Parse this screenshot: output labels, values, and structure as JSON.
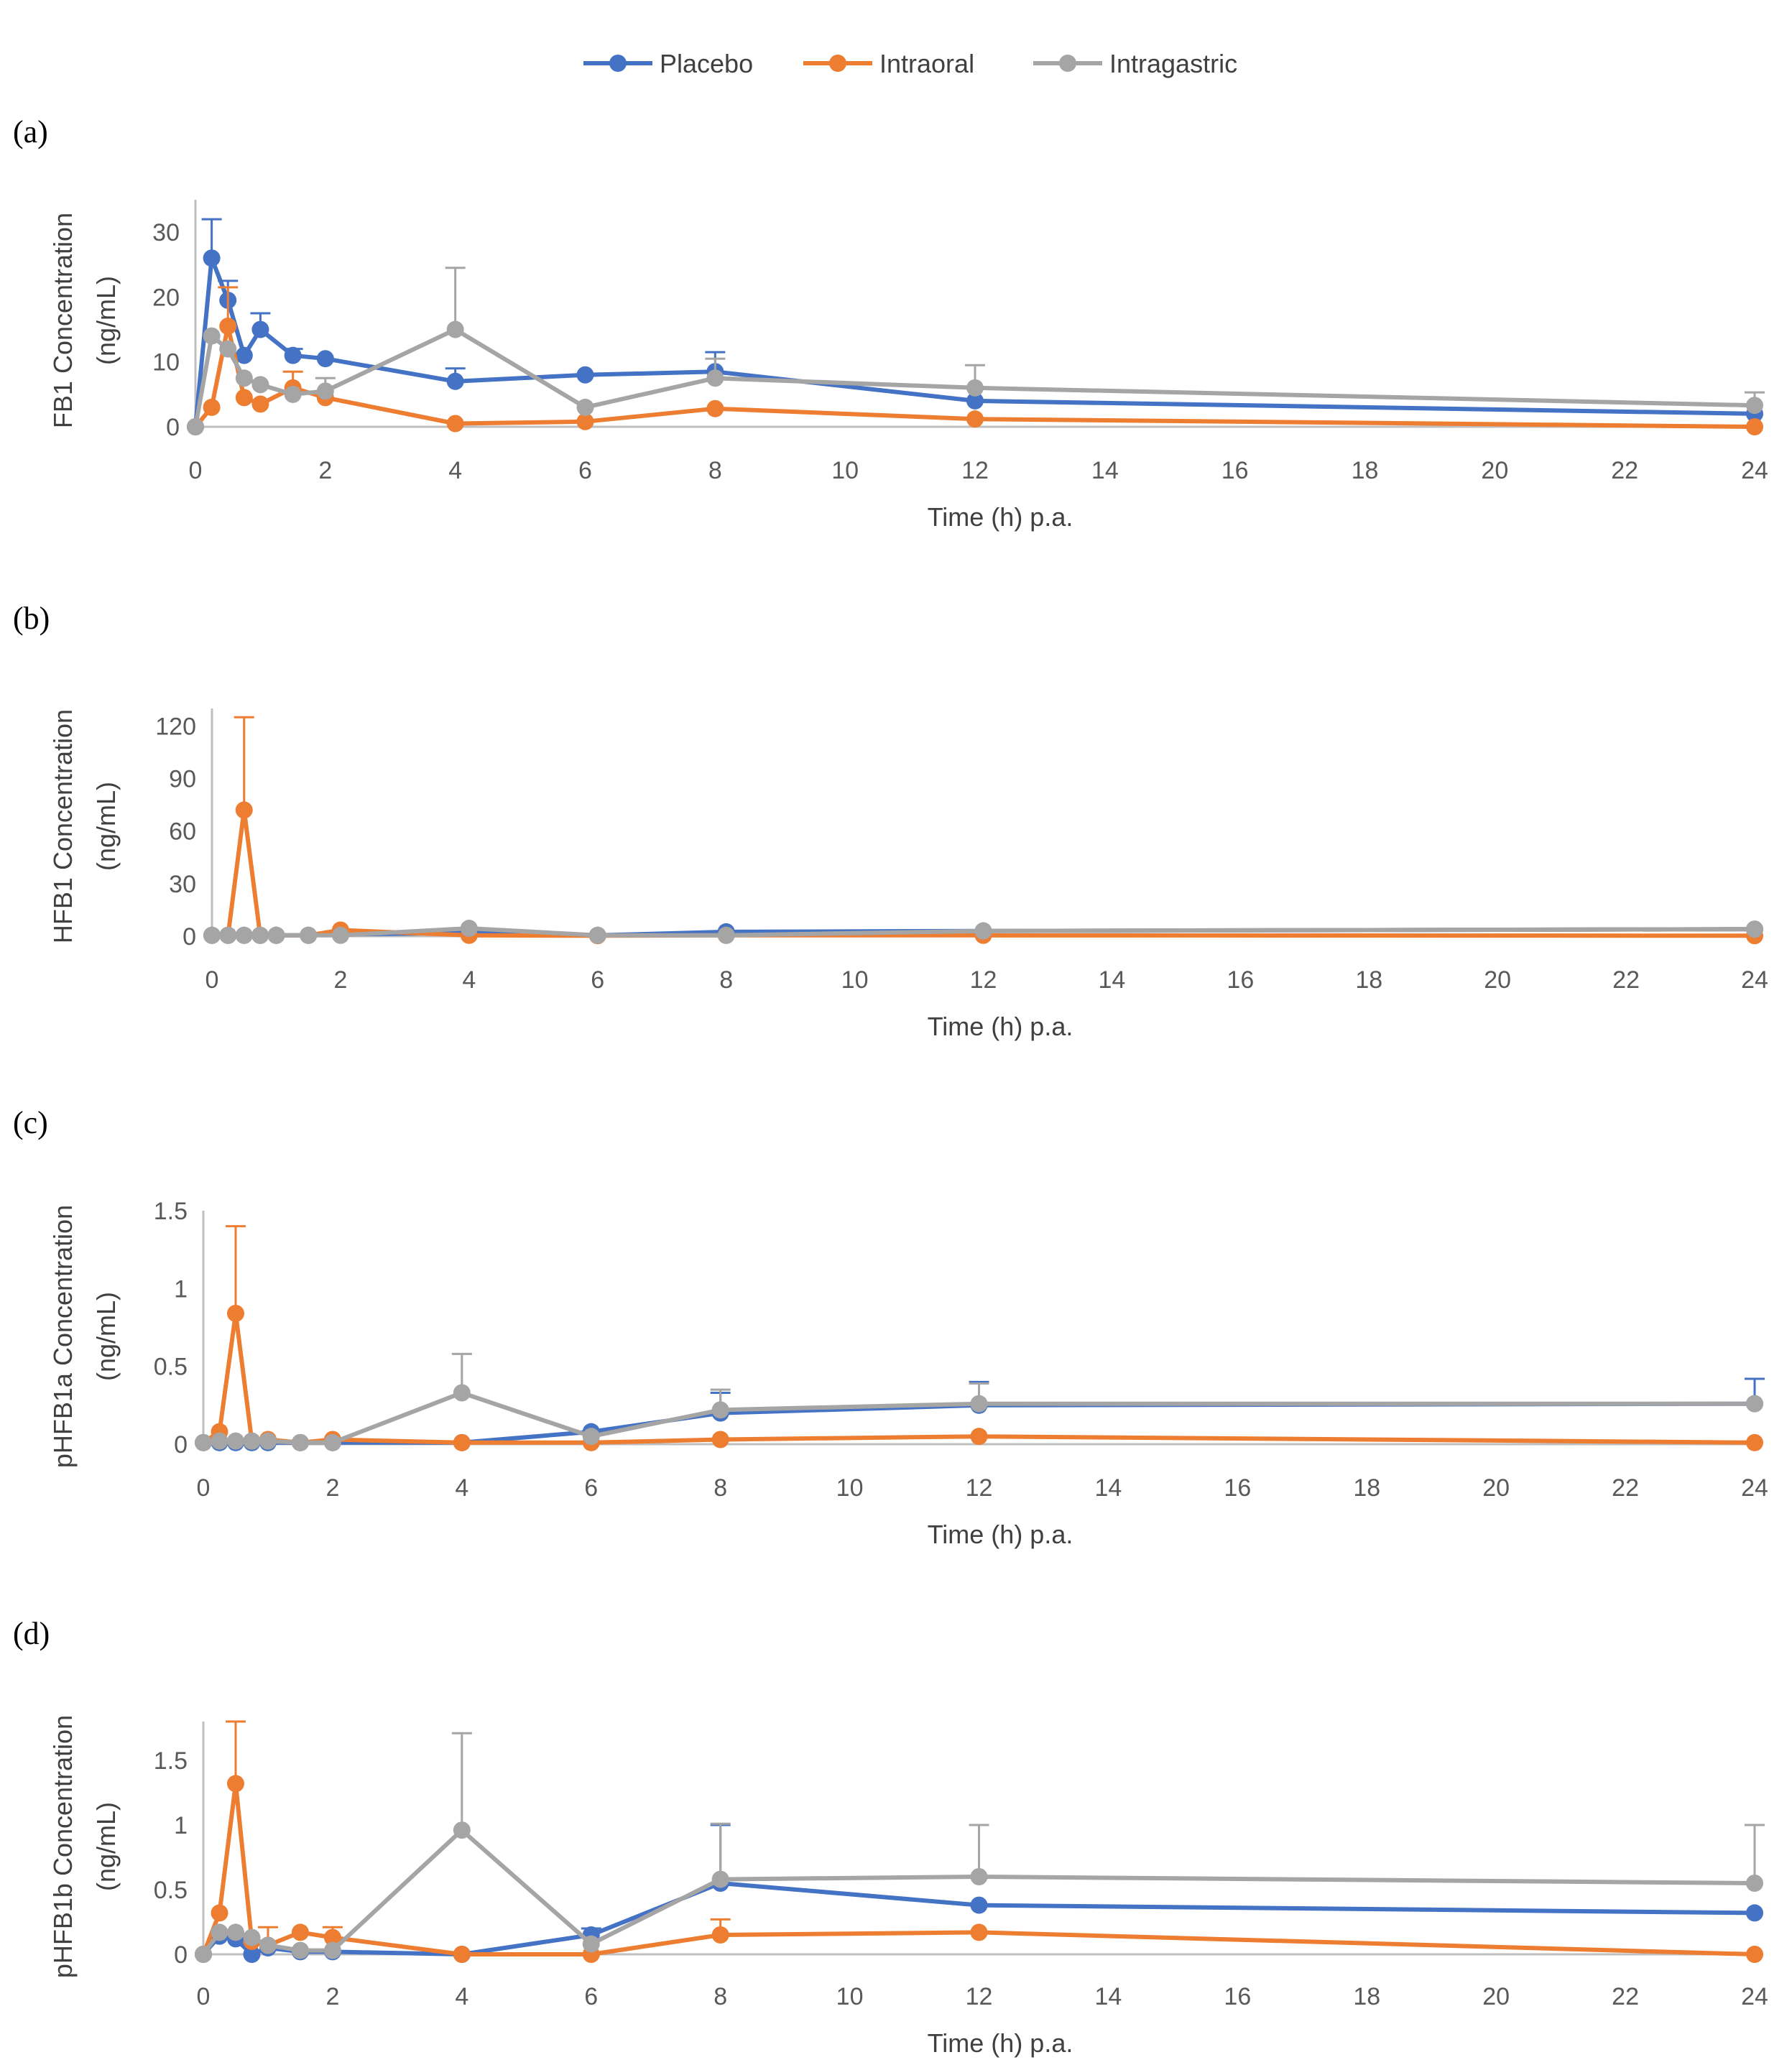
{
  "legend": [
    {
      "name": "Placebo",
      "color": "#4472C4"
    },
    {
      "name": "Intraoral",
      "color": "#ED7D31"
    },
    {
      "name": "Intragastric",
      "color": "#A5A5A5"
    }
  ],
  "chart_data": [
    {
      "type": "line",
      "panel_label": "(a)",
      "xlabel": "Time (h) p.a.",
      "ylabel_line1": "FB1 Concentration",
      "ylabel_line2": "(ng/mL)",
      "xlim": [
        0,
        24
      ],
      "ylim": [
        0,
        35
      ],
      "xticks": [
        0,
        2,
        4,
        6,
        8,
        10,
        12,
        14,
        16,
        18,
        20,
        22,
        24
      ],
      "yticks": [
        0,
        10,
        20,
        30
      ],
      "ytick_labels": [
        "0",
        "10",
        "20",
        "30"
      ],
      "series": [
        {
          "name": "Placebo",
          "color": "#4472C4",
          "x": [
            0,
            0.25,
            0.5,
            0.75,
            1,
            1.5,
            2,
            4,
            6,
            8,
            12,
            24
          ],
          "y": [
            0,
            26,
            19.5,
            11,
            15,
            11,
            10.5,
            7,
            8,
            8.5,
            4,
            2
          ],
          "err": [
            0,
            6,
            3,
            0,
            2.5,
            1,
            0,
            2,
            0,
            3,
            0,
            0
          ]
        },
        {
          "name": "Intraoral",
          "color": "#ED7D31",
          "x": [
            0,
            0.25,
            0.5,
            0.75,
            1,
            1.5,
            2,
            4,
            6,
            8,
            12,
            24
          ],
          "y": [
            0,
            3,
            15.5,
            4.5,
            3.5,
            6,
            4.5,
            0.5,
            0.8,
            2.8,
            1.2,
            0
          ],
          "err": [
            0,
            0,
            6,
            0,
            0,
            2.5,
            0,
            0,
            0,
            0,
            0,
            0
          ]
        },
        {
          "name": "Intragastric",
          "color": "#A5A5A5",
          "x": [
            0,
            0.25,
            0.5,
            0.75,
            1,
            1.5,
            2,
            4,
            6,
            8,
            12,
            24
          ],
          "y": [
            0,
            14,
            12,
            7.5,
            6.5,
            5,
            5.5,
            15,
            3,
            7.5,
            6,
            3.3
          ],
          "err": [
            0,
            0,
            0,
            0,
            0,
            0,
            2,
            9.5,
            0,
            3,
            3.5,
            2
          ]
        }
      ]
    },
    {
      "type": "line",
      "panel_label": "(b)",
      "xlabel": "Time (h) p.a.",
      "ylabel_line1": "HFB1 Concentration",
      "ylabel_line2": "(ng/mL)",
      "xlim": [
        0,
        24
      ],
      "ylim": [
        0,
        130
      ],
      "xticks": [
        0,
        2,
        4,
        6,
        8,
        10,
        12,
        14,
        16,
        18,
        20,
        22,
        24
      ],
      "yticks": [
        0,
        30,
        60,
        90,
        120
      ],
      "ytick_labels": [
        "0",
        "30",
        "60",
        "90",
        "120"
      ],
      "series": [
        {
          "name": "Placebo",
          "color": "#4472C4",
          "x": [
            0,
            0.25,
            0.5,
            0.75,
            1,
            1.5,
            2,
            4,
            6,
            8,
            12,
            24
          ],
          "y": [
            0.5,
            0.5,
            0.5,
            0.5,
            0.5,
            0.5,
            1,
            2,
            0.5,
            2.5,
            3,
            4
          ],
          "err": [
            0,
            0,
            0,
            0,
            0,
            0,
            0,
            0,
            0,
            0,
            0,
            0
          ]
        },
        {
          "name": "Intraoral",
          "color": "#ED7D31",
          "x": [
            0,
            0.25,
            0.5,
            0.75,
            1,
            1.5,
            2,
            4,
            6,
            8,
            12,
            24
          ],
          "y": [
            0.5,
            0.5,
            72,
            0.5,
            0.5,
            0.5,
            3.5,
            0.5,
            0.3,
            0.5,
            0.5,
            0.3
          ],
          "err": [
            0,
            0,
            53,
            0,
            0,
            0,
            0,
            0,
            0,
            0,
            0,
            0
          ]
        },
        {
          "name": "Intragastric",
          "color": "#A5A5A5",
          "x": [
            0,
            0.25,
            0.5,
            0.75,
            1,
            1.5,
            2,
            4,
            6,
            8,
            12,
            24
          ],
          "y": [
            0.5,
            0.5,
            0.5,
            0.5,
            0.5,
            0.5,
            0.5,
            4.5,
            0.5,
            0.5,
            3,
            4
          ],
          "err": [
            0,
            0,
            0,
            0,
            0,
            0,
            0,
            0,
            0,
            0,
            0,
            0
          ]
        }
      ]
    },
    {
      "type": "line",
      "panel_label": "(c)",
      "xlabel": "Time (h) p.a.",
      "ylabel_line1": "pHFB1a Concentration",
      "ylabel_line2": "(ng/mL)",
      "xlim": [
        0,
        24
      ],
      "ylim": [
        0,
        1.5
      ],
      "xticks": [
        0,
        2,
        4,
        6,
        8,
        10,
        12,
        14,
        16,
        18,
        20,
        22,
        24
      ],
      "yticks": [
        0,
        0.5,
        1,
        1.5
      ],
      "ytick_labels": [
        "0",
        "0.5",
        "1",
        "1.5"
      ],
      "series": [
        {
          "name": "Placebo",
          "color": "#4472C4",
          "x": [
            0,
            0.25,
            0.5,
            0.75,
            1,
            1.5,
            2,
            4,
            6,
            8,
            12,
            24
          ],
          "y": [
            0.01,
            0.01,
            0.01,
            0.01,
            0.01,
            0.01,
            0.01,
            0.01,
            0.08,
            0.2,
            0.25,
            0.26
          ],
          "err": [
            0,
            0,
            0,
            0,
            0,
            0,
            0,
            0,
            0,
            0.13,
            0.15,
            0.16
          ]
        },
        {
          "name": "Intraoral",
          "color": "#ED7D31",
          "x": [
            0,
            0.25,
            0.5,
            0.75,
            1,
            1.5,
            2,
            4,
            6,
            8,
            12,
            24
          ],
          "y": [
            0.01,
            0.08,
            0.84,
            0.02,
            0.03,
            0.01,
            0.03,
            0.01,
            0.01,
            0.03,
            0.05,
            0.01
          ],
          "err": [
            0,
            0,
            0.56,
            0,
            0,
            0,
            0,
            0,
            0,
            0,
            0,
            0
          ]
        },
        {
          "name": "Intragastric",
          "color": "#A5A5A5",
          "x": [
            0,
            0.25,
            0.5,
            0.75,
            1,
            1.5,
            2,
            4,
            6,
            8,
            12,
            24
          ],
          "y": [
            0.01,
            0.02,
            0.02,
            0.02,
            0.02,
            0.01,
            0.01,
            0.33,
            0.05,
            0.22,
            0.26,
            0.26
          ],
          "err": [
            0,
            0,
            0,
            0,
            0,
            0,
            0,
            0.25,
            0,
            0.13,
            0.13,
            0
          ]
        }
      ]
    },
    {
      "type": "line",
      "panel_label": "(d)",
      "xlabel": "Time (h) p.a.",
      "ylabel_line1": "pHFB1b Concentration",
      "ylabel_line2": "(ng/mL)",
      "xlim": [
        0,
        24
      ],
      "ylim": [
        0,
        1.8
      ],
      "xticks": [
        0,
        2,
        4,
        6,
        8,
        10,
        12,
        14,
        16,
        18,
        20,
        22,
        24
      ],
      "yticks": [
        0,
        0.5,
        1,
        1.5
      ],
      "ytick_labels": [
        "0",
        "0.5",
        "1",
        "1.5"
      ],
      "series": [
        {
          "name": "Placebo",
          "color": "#4472C4",
          "x": [
            0,
            0.25,
            0.5,
            0.75,
            1,
            1.5,
            2,
            4,
            6,
            8,
            12,
            24
          ],
          "y": [
            0,
            0.14,
            0.12,
            0,
            0.05,
            0.02,
            0.02,
            0,
            0.15,
            0.55,
            0.38,
            0.32
          ],
          "err": [
            0,
            0,
            0,
            0,
            0,
            0,
            0,
            0,
            0.05,
            0.45,
            0,
            0
          ]
        },
        {
          "name": "Intraoral",
          "color": "#ED7D31",
          "x": [
            0,
            0.25,
            0.5,
            0.75,
            1,
            1.5,
            2,
            4,
            6,
            8,
            12,
            24
          ],
          "y": [
            0,
            0.32,
            1.32,
            0.1,
            0.07,
            0.17,
            0.13,
            0,
            0,
            0.15,
            0.17,
            0
          ],
          "err": [
            0,
            0,
            0.48,
            0,
            0.14,
            0,
            0.08,
            0,
            0,
            0.12,
            0,
            0
          ]
        },
        {
          "name": "Intragastric",
          "color": "#A5A5A5",
          "x": [
            0,
            0.25,
            0.5,
            0.75,
            1,
            1.5,
            2,
            4,
            6,
            8,
            12,
            24
          ],
          "y": [
            0,
            0.17,
            0.17,
            0.13,
            0.07,
            0.03,
            0.03,
            0.96,
            0.08,
            0.58,
            0.6,
            0.55
          ],
          "err": [
            0,
            0,
            0,
            0,
            0,
            0,
            0,
            0.75,
            0,
            0.43,
            0.4,
            0.45
          ]
        }
      ]
    }
  ]
}
